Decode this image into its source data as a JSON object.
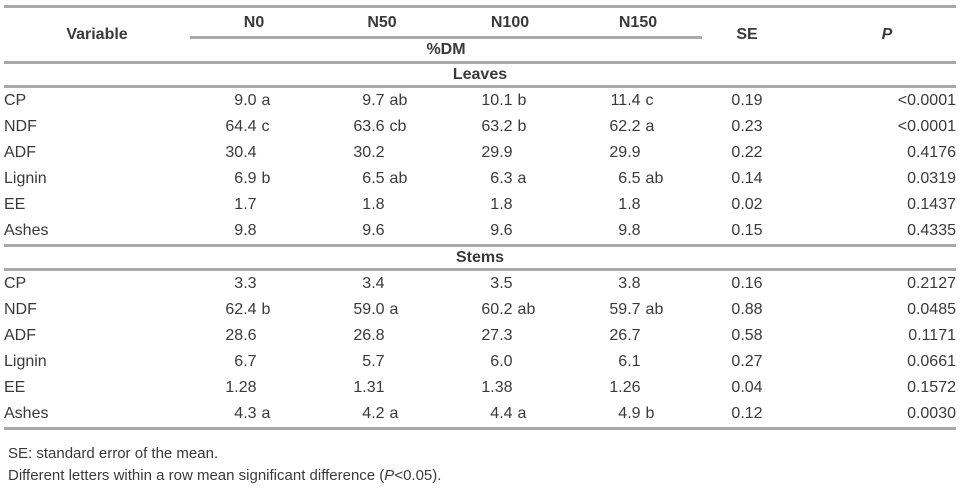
{
  "colors": {
    "rule": "#a9a9a9",
    "text": "#3a3a3a",
    "background": "#ffffff"
  },
  "table": {
    "header": {
      "variable_label": "Variable",
      "n_levels": [
        "N0",
        "N50",
        "N100",
        "N150"
      ],
      "unit_label": "%DM",
      "se_label": "SE",
      "p_label": "P"
    },
    "sections": [
      {
        "title": "Leaves",
        "rows": [
          {
            "variable": "CP",
            "values": [
              "9.0 a",
              "9.7 ab",
              "10.1 b",
              "11.4 c"
            ],
            "se": "0.19",
            "p": "<0.0001"
          },
          {
            "variable": "NDF",
            "values": [
              "64.4 c",
              "63.6 cb",
              "63.2 b",
              "62.2 a"
            ],
            "se": "0.23",
            "p": "<0.0001"
          },
          {
            "variable": "ADF",
            "values": [
              "30.4",
              "30.2",
              "29.9",
              "29.9"
            ],
            "se": "0.22",
            "p": "0.4176"
          },
          {
            "variable": "Lignin",
            "values": [
              "6.9 b",
              "6.5 ab",
              "6.3 a",
              "6.5 ab"
            ],
            "se": "0.14",
            "p": "0.0319"
          },
          {
            "variable": "EE",
            "values": [
              "1.7",
              "1.8",
              "1.8",
              "1.8"
            ],
            "se": "0.02",
            "p": "0.1437"
          },
          {
            "variable": "Ashes",
            "values": [
              "9.8",
              "9.6",
              "9.6",
              "9.8"
            ],
            "se": "0.15",
            "p": "0.4335"
          }
        ]
      },
      {
        "title": "Stems",
        "rows": [
          {
            "variable": "CP",
            "values": [
              "3.3",
              "3.4",
              "3.5",
              "3.8"
            ],
            "se": "0.16",
            "p": "0.2127"
          },
          {
            "variable": "NDF",
            "values": [
              "62.4 b",
              "59.0 a",
              "60.2 ab",
              "59.7 ab"
            ],
            "se": "0.88",
            "p": "0.0485"
          },
          {
            "variable": "ADF",
            "values": [
              "28.6",
              "26.8",
              "27.3",
              "26.7"
            ],
            "se": "0.58",
            "p": "0.1171"
          },
          {
            "variable": "Lignin",
            "values": [
              "6.7",
              "5.7",
              "6.0",
              "6.1"
            ],
            "se": "0.27",
            "p": "0.0661"
          },
          {
            "variable": "EE",
            "values": [
              "1.28",
              "1.31",
              "1.38",
              "1.26"
            ],
            "se": "0.04",
            "p": "0.1572"
          },
          {
            "variable": "Ashes",
            "values": [
              "4.3 a",
              "4.2 a",
              "4.4 a",
              "4.9 b"
            ],
            "se": "0.12",
            "p": "0.0030"
          }
        ]
      }
    ],
    "footnotes": [
      {
        "pre": "SE: standard error of the mean.",
        "italic": "",
        "post": ""
      },
      {
        "pre": "Different letters within a row mean significant difference (",
        "italic": "P",
        "post": "<0.05)."
      }
    ]
  }
}
